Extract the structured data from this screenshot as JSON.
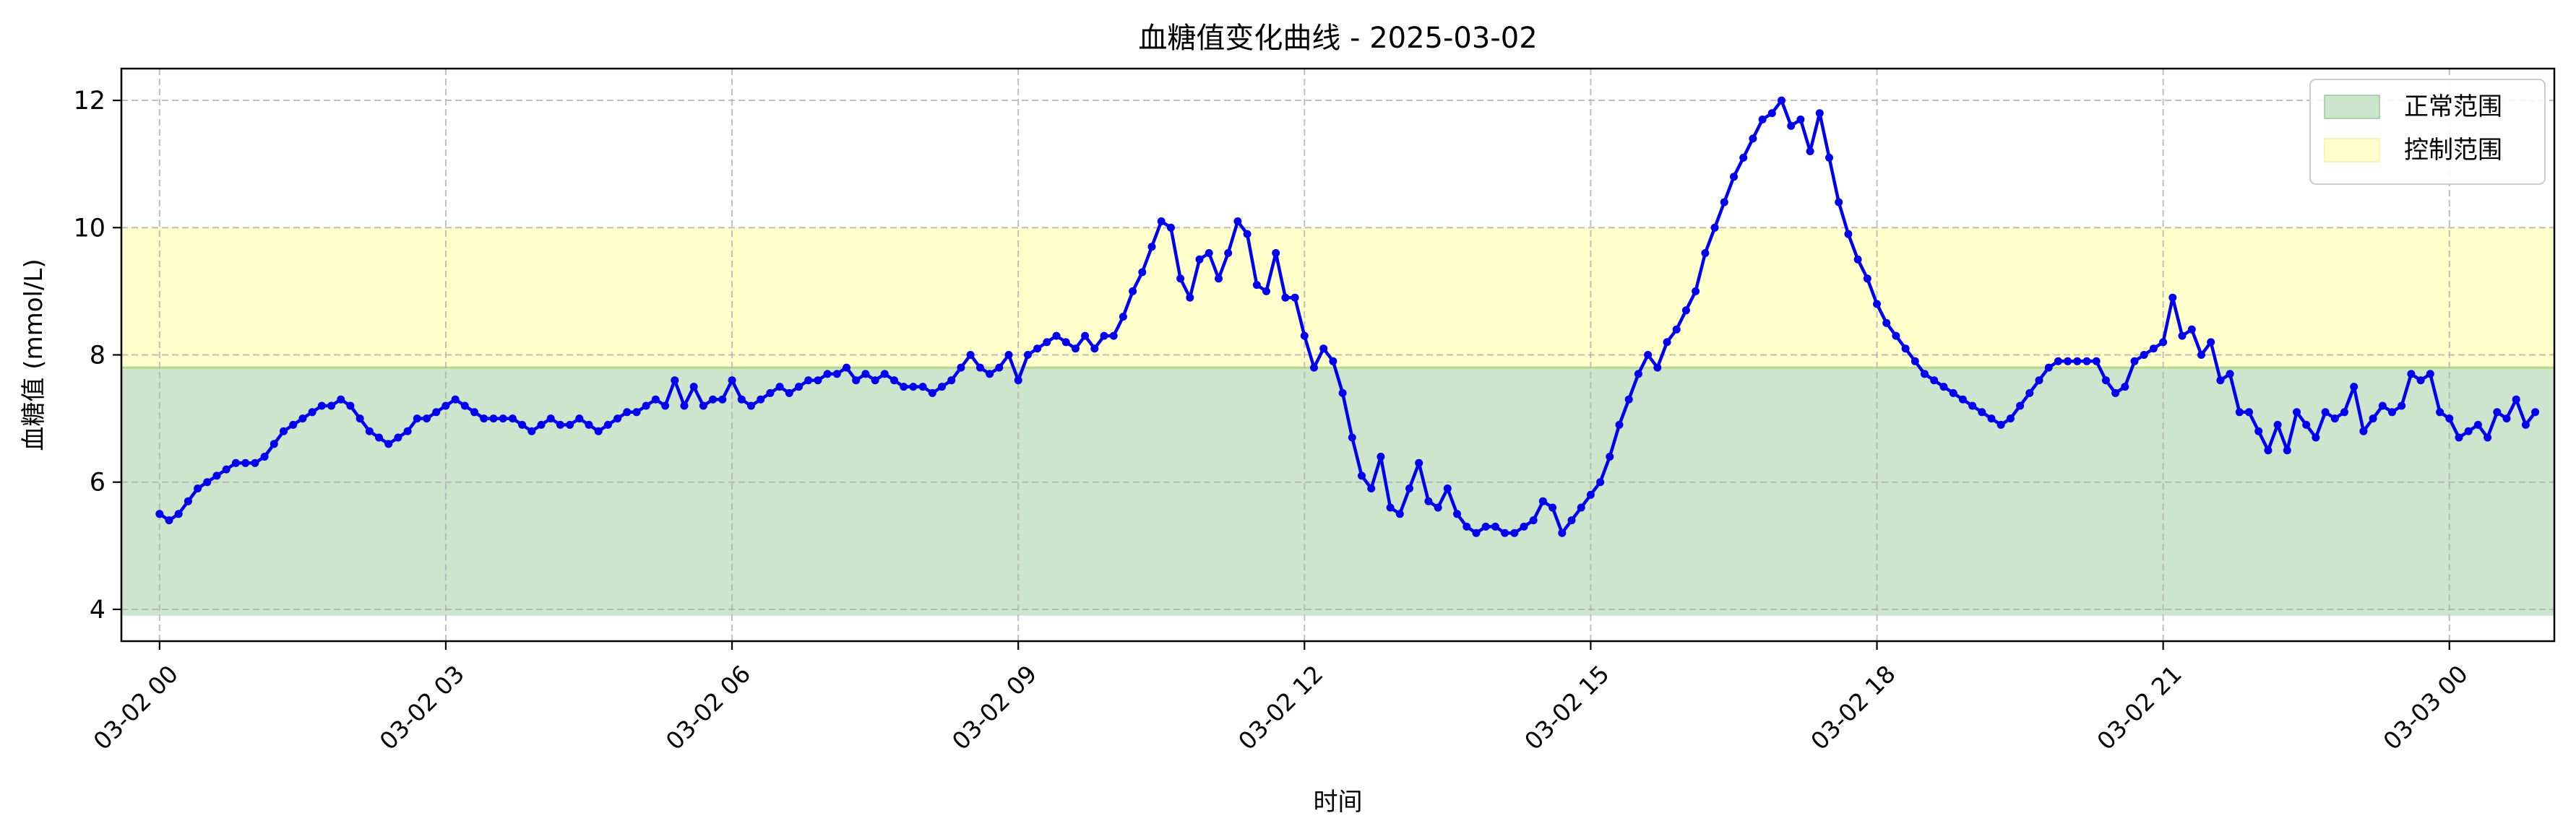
{
  "chart_data": {
    "type": "line",
    "title": "血糖值变化曲线 - 2025-03-02",
    "xlabel": "时间",
    "ylabel": "血糖值 (mmol/L)",
    "x_unit": "hours",
    "xlim": [
      -0.4,
      25.1
    ],
    "ylim": [
      3.5,
      12.5
    ],
    "x_ticks": [
      {
        "value": 0,
        "label": "03-02 00"
      },
      {
        "value": 3,
        "label": "03-02 03"
      },
      {
        "value": 6,
        "label": "03-02 06"
      },
      {
        "value": 9,
        "label": "03-02 09"
      },
      {
        "value": 12,
        "label": "03-02 12"
      },
      {
        "value": 15,
        "label": "03-02 15"
      },
      {
        "value": 18,
        "label": "03-02 18"
      },
      {
        "value": 21,
        "label": "03-02 21"
      },
      {
        "value": 24,
        "label": "03-03 00"
      }
    ],
    "y_ticks": [
      4,
      6,
      8,
      10,
      12
    ],
    "grid": true,
    "legend_position": "top-right",
    "bands": [
      {
        "name": "正常范围",
        "from": 3.9,
        "to": 7.8,
        "color": "#cde4cd"
      },
      {
        "name": "控制范围",
        "from": 7.8,
        "to": 10.0,
        "color": "#ffffcc"
      }
    ],
    "series": [
      {
        "color": "#0000ee",
        "points": [
          [
            0.0,
            5.5
          ],
          [
            0.1,
            5.4
          ],
          [
            0.2,
            5.5
          ],
          [
            0.3,
            5.7
          ],
          [
            0.4,
            5.9
          ],
          [
            0.5,
            6.0
          ],
          [
            0.6,
            6.1
          ],
          [
            0.7,
            6.2
          ],
          [
            0.8,
            6.3
          ],
          [
            0.9,
            6.3
          ],
          [
            1.0,
            6.3
          ],
          [
            1.1,
            6.4
          ],
          [
            1.2,
            6.6
          ],
          [
            1.3,
            6.8
          ],
          [
            1.4,
            6.9
          ],
          [
            1.5,
            7.0
          ],
          [
            1.6,
            7.1
          ],
          [
            1.7,
            7.2
          ],
          [
            1.8,
            7.2
          ],
          [
            1.9,
            7.3
          ],
          [
            2.0,
            7.2
          ],
          [
            2.1,
            7.0
          ],
          [
            2.2,
            6.8
          ],
          [
            2.3,
            6.7
          ],
          [
            2.4,
            6.6
          ],
          [
            2.5,
            6.7
          ],
          [
            2.6,
            6.8
          ],
          [
            2.7,
            7.0
          ],
          [
            2.8,
            7.0
          ],
          [
            2.9,
            7.1
          ],
          [
            3.0,
            7.2
          ],
          [
            3.1,
            7.3
          ],
          [
            3.2,
            7.2
          ],
          [
            3.3,
            7.1
          ],
          [
            3.4,
            7.0
          ],
          [
            3.5,
            7.0
          ],
          [
            3.6,
            7.0
          ],
          [
            3.7,
            7.0
          ],
          [
            3.8,
            6.9
          ],
          [
            3.9,
            6.8
          ],
          [
            4.0,
            6.9
          ],
          [
            4.1,
            7.0
          ],
          [
            4.2,
            6.9
          ],
          [
            4.3,
            6.9
          ],
          [
            4.4,
            7.0
          ],
          [
            4.5,
            6.9
          ],
          [
            4.6,
            6.8
          ],
          [
            4.7,
            6.9
          ],
          [
            4.8,
            7.0
          ],
          [
            4.9,
            7.1
          ],
          [
            5.0,
            7.1
          ],
          [
            5.1,
            7.2
          ],
          [
            5.2,
            7.3
          ],
          [
            5.3,
            7.2
          ],
          [
            5.4,
            7.6
          ],
          [
            5.5,
            7.2
          ],
          [
            5.6,
            7.5
          ],
          [
            5.7,
            7.2
          ],
          [
            5.8,
            7.3
          ],
          [
            5.9,
            7.3
          ],
          [
            6.0,
            7.6
          ],
          [
            6.1,
            7.3
          ],
          [
            6.2,
            7.2
          ],
          [
            6.3,
            7.3
          ],
          [
            6.4,
            7.4
          ],
          [
            6.5,
            7.5
          ],
          [
            6.6,
            7.4
          ],
          [
            6.7,
            7.5
          ],
          [
            6.8,
            7.6
          ],
          [
            6.9,
            7.6
          ],
          [
            7.0,
            7.7
          ],
          [
            7.1,
            7.7
          ],
          [
            7.2,
            7.8
          ],
          [
            7.3,
            7.6
          ],
          [
            7.4,
            7.7
          ],
          [
            7.5,
            7.6
          ],
          [
            7.6,
            7.7
          ],
          [
            7.7,
            7.6
          ],
          [
            7.8,
            7.5
          ],
          [
            7.9,
            7.5
          ],
          [
            8.0,
            7.5
          ],
          [
            8.1,
            7.4
          ],
          [
            8.2,
            7.5
          ],
          [
            8.3,
            7.6
          ],
          [
            8.4,
            7.8
          ],
          [
            8.5,
            8.0
          ],
          [
            8.6,
            7.8
          ],
          [
            8.7,
            7.7
          ],
          [
            8.8,
            7.8
          ],
          [
            8.9,
            8.0
          ],
          [
            9.0,
            7.6
          ],
          [
            9.1,
            8.0
          ],
          [
            9.2,
            8.1
          ],
          [
            9.3,
            8.2
          ],
          [
            9.4,
            8.3
          ],
          [
            9.5,
            8.2
          ],
          [
            9.6,
            8.1
          ],
          [
            9.7,
            8.3
          ],
          [
            9.8,
            8.1
          ],
          [
            9.9,
            8.3
          ],
          [
            10.0,
            8.3
          ],
          [
            10.1,
            8.6
          ],
          [
            10.2,
            9.0
          ],
          [
            10.3,
            9.3
          ],
          [
            10.4,
            9.7
          ],
          [
            10.5,
            10.1
          ],
          [
            10.6,
            10.0
          ],
          [
            10.7,
            9.2
          ],
          [
            10.8,
            8.9
          ],
          [
            10.9,
            9.5
          ],
          [
            11.0,
            9.6
          ],
          [
            11.1,
            9.2
          ],
          [
            11.2,
            9.6
          ],
          [
            11.3,
            10.1
          ],
          [
            11.4,
            9.9
          ],
          [
            11.5,
            9.1
          ],
          [
            11.6,
            9.0
          ],
          [
            11.7,
            9.6
          ],
          [
            11.8,
            8.9
          ],
          [
            11.9,
            8.9
          ],
          [
            12.0,
            8.3
          ],
          [
            12.1,
            7.8
          ],
          [
            12.2,
            8.1
          ],
          [
            12.3,
            7.9
          ],
          [
            12.4,
            7.4
          ],
          [
            12.5,
            6.7
          ],
          [
            12.6,
            6.1
          ],
          [
            12.7,
            5.9
          ],
          [
            12.8,
            6.4
          ],
          [
            12.9,
            5.6
          ],
          [
            13.0,
            5.5
          ],
          [
            13.1,
            5.9
          ],
          [
            13.2,
            6.3
          ],
          [
            13.3,
            5.7
          ],
          [
            13.4,
            5.6
          ],
          [
            13.5,
            5.9
          ],
          [
            13.6,
            5.5
          ],
          [
            13.7,
            5.3
          ],
          [
            13.8,
            5.2
          ],
          [
            13.9,
            5.3
          ],
          [
            14.0,
            5.3
          ],
          [
            14.1,
            5.2
          ],
          [
            14.2,
            5.2
          ],
          [
            14.3,
            5.3
          ],
          [
            14.4,
            5.4
          ],
          [
            14.5,
            5.7
          ],
          [
            14.6,
            5.6
          ],
          [
            14.7,
            5.2
          ],
          [
            14.8,
            5.4
          ],
          [
            14.9,
            5.6
          ],
          [
            15.0,
            5.8
          ],
          [
            15.1,
            6.0
          ],
          [
            15.2,
            6.4
          ],
          [
            15.3,
            6.9
          ],
          [
            15.4,
            7.3
          ],
          [
            15.5,
            7.7
          ],
          [
            15.6,
            8.0
          ],
          [
            15.7,
            7.8
          ],
          [
            15.8,
            8.2
          ],
          [
            15.9,
            8.4
          ],
          [
            16.0,
            8.7
          ],
          [
            16.1,
            9.0
          ],
          [
            16.2,
            9.6
          ],
          [
            16.3,
            10.0
          ],
          [
            16.4,
            10.4
          ],
          [
            16.5,
            10.8
          ],
          [
            16.6,
            11.1
          ],
          [
            16.7,
            11.4
          ],
          [
            16.8,
            11.7
          ],
          [
            16.9,
            11.8
          ],
          [
            17.0,
            12.0
          ],
          [
            17.1,
            11.6
          ],
          [
            17.2,
            11.7
          ],
          [
            17.3,
            11.2
          ],
          [
            17.4,
            11.8
          ],
          [
            17.5,
            11.1
          ],
          [
            17.6,
            10.4
          ],
          [
            17.7,
            9.9
          ],
          [
            17.8,
            9.5
          ],
          [
            17.9,
            9.2
          ],
          [
            18.0,
            8.8
          ],
          [
            18.1,
            8.5
          ],
          [
            18.2,
            8.3
          ],
          [
            18.3,
            8.1
          ],
          [
            18.4,
            7.9
          ],
          [
            18.5,
            7.7
          ],
          [
            18.6,
            7.6
          ],
          [
            18.7,
            7.5
          ],
          [
            18.8,
            7.4
          ],
          [
            18.9,
            7.3
          ],
          [
            19.0,
            7.2
          ],
          [
            19.1,
            7.1
          ],
          [
            19.2,
            7.0
          ],
          [
            19.3,
            6.9
          ],
          [
            19.4,
            7.0
          ],
          [
            19.5,
            7.2
          ],
          [
            19.6,
            7.4
          ],
          [
            19.7,
            7.6
          ],
          [
            19.8,
            7.8
          ],
          [
            19.9,
            7.9
          ],
          [
            20.0,
            7.9
          ],
          [
            20.1,
            7.9
          ],
          [
            20.2,
            7.9
          ],
          [
            20.3,
            7.9
          ],
          [
            20.4,
            7.6
          ],
          [
            20.5,
            7.4
          ],
          [
            20.6,
            7.5
          ],
          [
            20.7,
            7.9
          ],
          [
            20.8,
            8.0
          ],
          [
            20.9,
            8.1
          ],
          [
            21.0,
            8.2
          ],
          [
            21.1,
            8.9
          ],
          [
            21.2,
            8.3
          ],
          [
            21.3,
            8.4
          ],
          [
            21.4,
            8.0
          ],
          [
            21.5,
            8.2
          ],
          [
            21.6,
            7.6
          ],
          [
            21.7,
            7.7
          ],
          [
            21.8,
            7.1
          ],
          [
            21.9,
            7.1
          ],
          [
            22.0,
            6.8
          ],
          [
            22.1,
            6.5
          ],
          [
            22.2,
            6.9
          ],
          [
            22.3,
            6.5
          ],
          [
            22.4,
            7.1
          ],
          [
            22.5,
            6.9
          ],
          [
            22.6,
            6.7
          ],
          [
            22.7,
            7.1
          ],
          [
            22.8,
            7.0
          ],
          [
            22.9,
            7.1
          ],
          [
            23.0,
            7.5
          ],
          [
            23.1,
            6.8
          ],
          [
            23.2,
            7.0
          ],
          [
            23.3,
            7.2
          ],
          [
            23.4,
            7.1
          ],
          [
            23.5,
            7.2
          ],
          [
            23.6,
            7.7
          ],
          [
            23.7,
            7.6
          ],
          [
            23.8,
            7.7
          ],
          [
            23.9,
            7.1
          ],
          [
            24.0,
            7.0
          ],
          [
            24.1,
            6.7
          ],
          [
            24.2,
            6.8
          ],
          [
            24.3,
            6.9
          ],
          [
            24.4,
            6.7
          ],
          [
            24.5,
            7.1
          ],
          [
            24.6,
            7.0
          ],
          [
            24.7,
            7.3
          ],
          [
            24.8,
            6.9
          ],
          [
            24.9,
            7.1
          ]
        ]
      }
    ]
  }
}
